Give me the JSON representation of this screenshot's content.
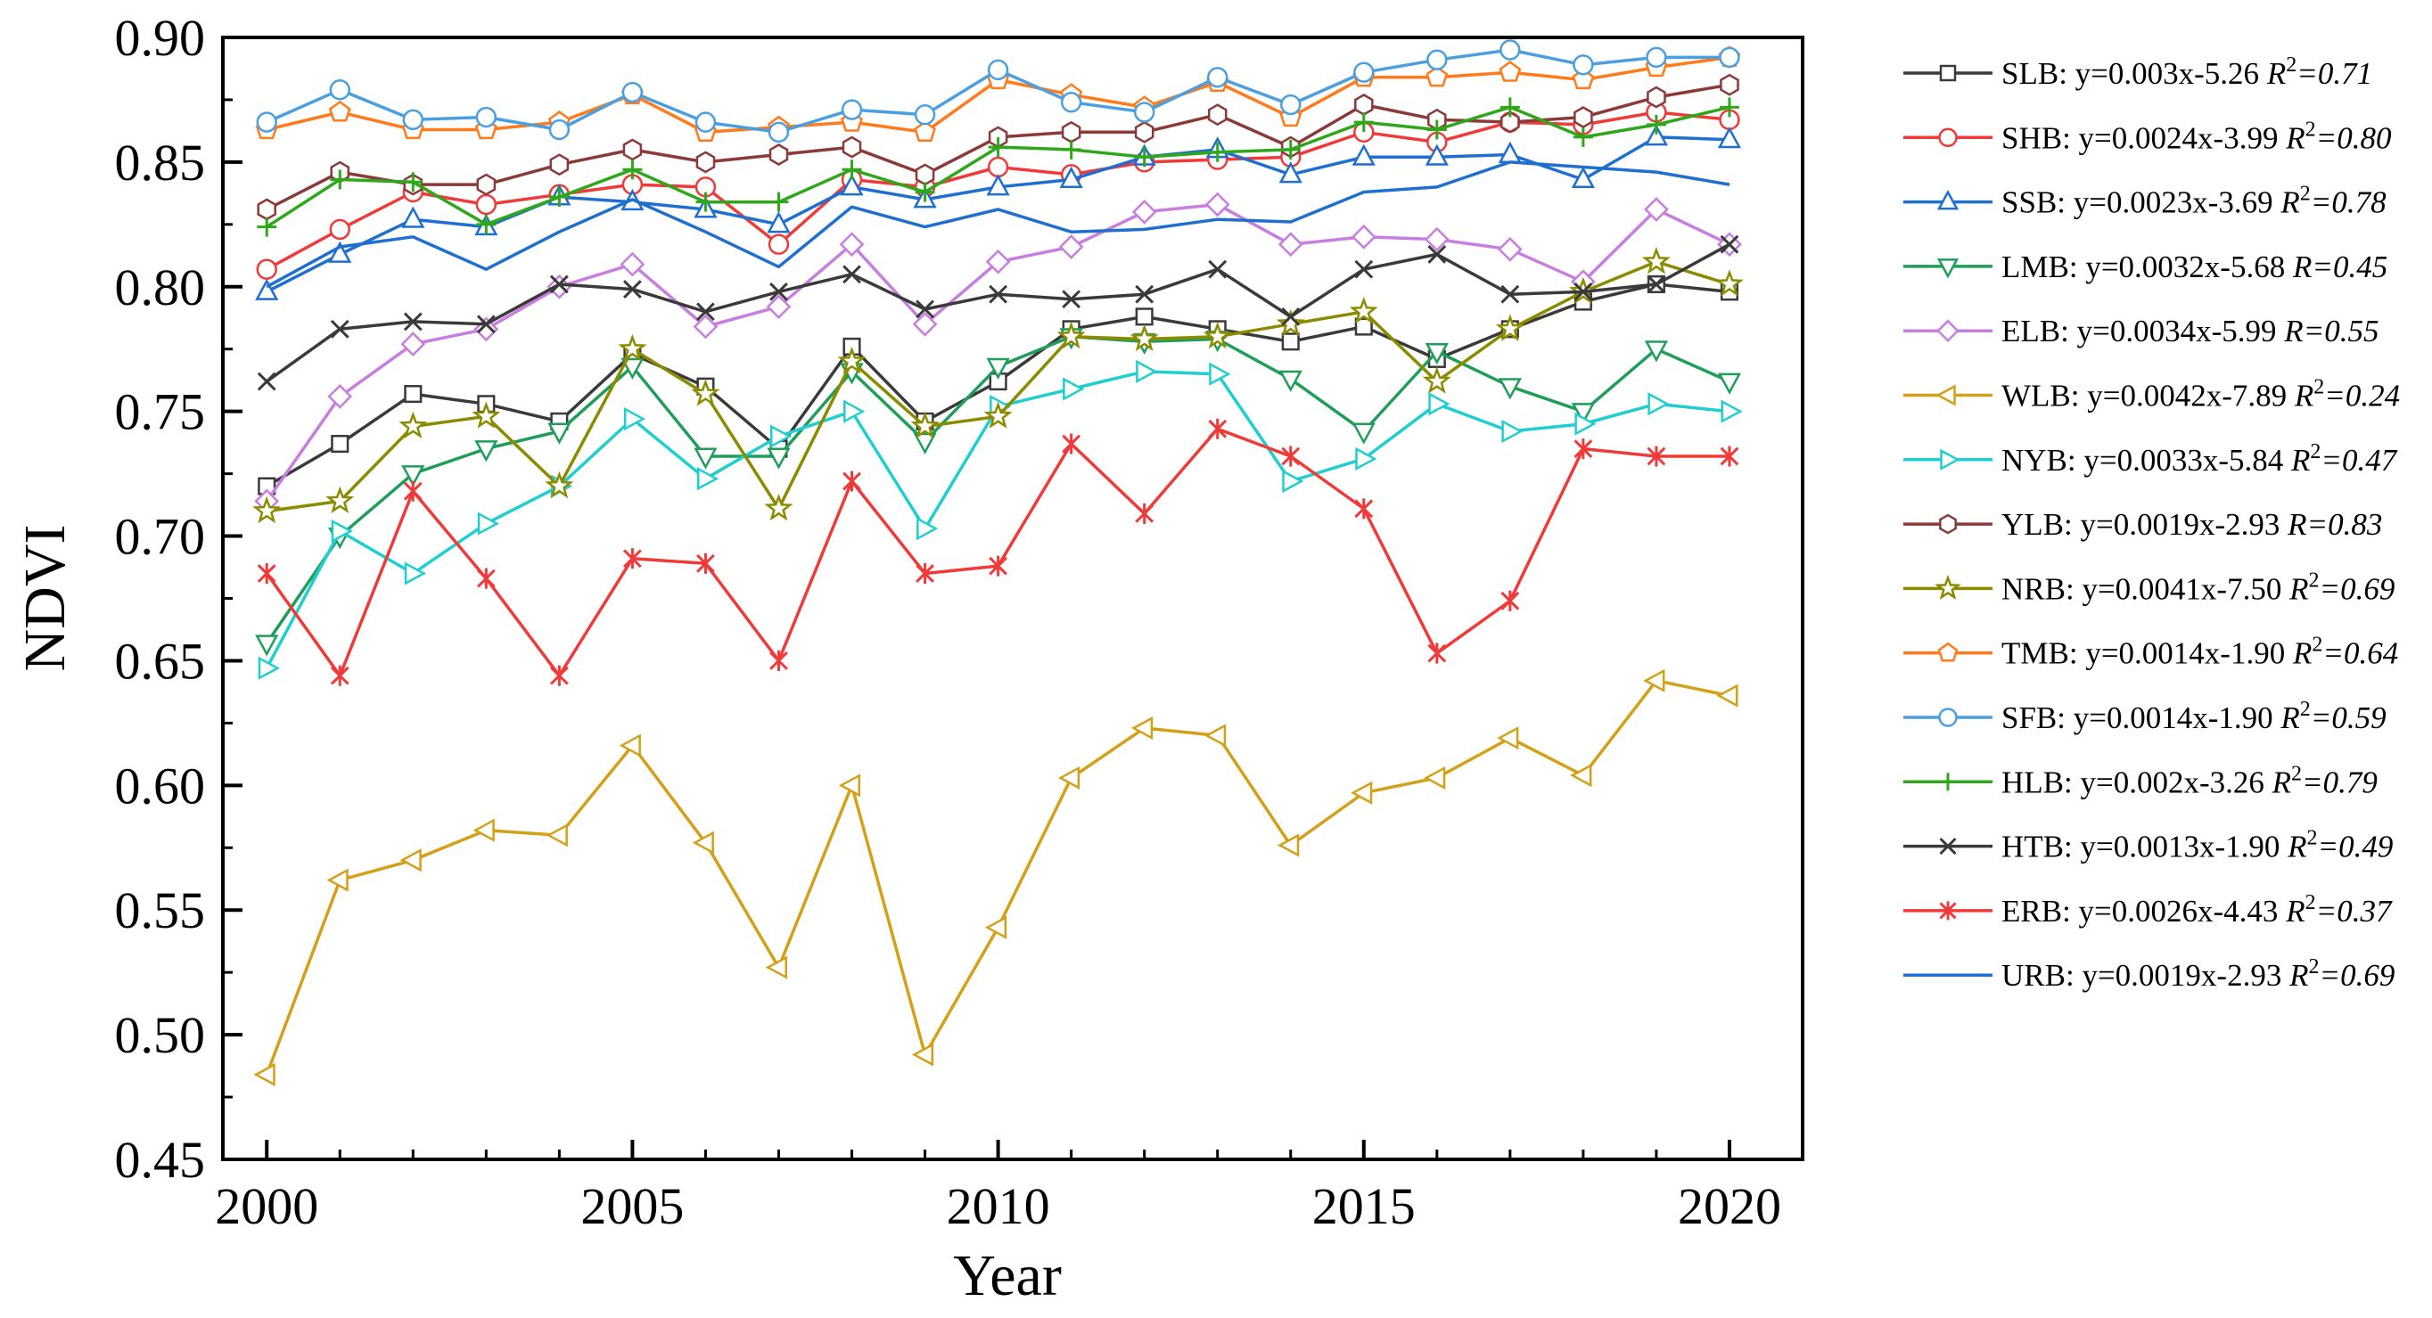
{
  "chart_data": {
    "type": "line",
    "title": "",
    "xlabel": "Year",
    "ylabel": "NDVI",
    "xlim": [
      1999.4,
      2021.0
    ],
    "ylim": [
      0.45,
      0.9
    ],
    "xticks": [
      "2000",
      "2005",
      "2010",
      "2015",
      "2020"
    ],
    "yticks": [
      "0.45",
      "0.50",
      "0.55",
      "0.60",
      "0.65",
      "0.70",
      "0.75",
      "0.80",
      "0.85",
      "0.90"
    ],
    "legend_position": "right",
    "x": [
      2000,
      2001,
      2002,
      2003,
      2004,
      2005,
      2006,
      2007,
      2008,
      2009,
      2010,
      2011,
      2012,
      2013,
      2014,
      2015,
      2016,
      2017,
      2018,
      2019,
      2020
    ],
    "series": [
      {
        "name": "SLB",
        "label": "SLB: y=0.003x-5.26 ",
        "r2_label": "R",
        "r2_sup": "2",
        "r2_value": "=0.71",
        "color": "#3a3a3a",
        "marker": "square",
        "values": [
          0.72,
          0.737,
          0.757,
          0.753,
          0.746,
          0.773,
          0.76,
          0.735,
          0.776,
          0.746,
          0.762,
          0.783,
          0.788,
          0.783,
          0.778,
          0.784,
          0.771,
          0.783,
          0.794,
          0.801,
          0.798
        ]
      },
      {
        "name": "SHB",
        "label": "SHB: y=0.0024x-3.99 ",
        "r2_label": "R",
        "r2_sup": "2",
        "r2_value": "=0.80",
        "color": "#f03a3a",
        "marker": "circle",
        "values": [
          0.807,
          0.823,
          0.838,
          0.833,
          0.837,
          0.841,
          0.84,
          0.817,
          0.843,
          0.84,
          0.848,
          0.845,
          0.85,
          0.851,
          0.852,
          0.862,
          0.858,
          0.866,
          0.865,
          0.87,
          0.867
        ]
      },
      {
        "name": "SSB",
        "label": "SSB: y=0.0023x-3.69 ",
        "r2_label": "R",
        "r2_sup": "2",
        "r2_value": "=0.78",
        "color": "#1f6fd1",
        "marker": "triangle-up",
        "values": [
          0.798,
          0.813,
          0.827,
          0.824,
          0.836,
          0.834,
          0.831,
          0.825,
          0.84,
          0.835,
          0.84,
          0.843,
          0.852,
          0.855,
          0.845,
          0.852,
          0.852,
          0.853,
          0.843,
          0.86,
          0.859
        ]
      },
      {
        "name": "LMB",
        "label": "LMB: y=0.0032x-5.68 ",
        "r2_label": "R",
        "r2_sup": "",
        "r2_value": "=0.45",
        "color": "#1f9e5a",
        "marker": "triangle-down",
        "values": [
          0.657,
          0.7,
          0.725,
          0.735,
          0.742,
          0.768,
          0.732,
          0.732,
          0.766,
          0.738,
          0.768,
          0.78,
          0.778,
          0.779,
          0.763,
          0.742,
          0.774,
          0.76,
          0.75,
          0.775,
          0.762
        ]
      },
      {
        "name": "ELB",
        "label": "ELB: y=0.0034x-5.99 ",
        "r2_label": "R",
        "r2_sup": "",
        "r2_value": "=0.55",
        "color": "#c77ee0",
        "marker": "diamond",
        "values": [
          0.714,
          0.756,
          0.777,
          0.783,
          0.8,
          0.809,
          0.784,
          0.792,
          0.817,
          0.785,
          0.81,
          0.816,
          0.83,
          0.833,
          0.817,
          0.82,
          0.819,
          0.815,
          0.802,
          0.831,
          0.817
        ]
      },
      {
        "name": "WLB",
        "label": "WLB: y=0.0042x-7.89 ",
        "r2_label": "R",
        "r2_sup": "2",
        "r2_value": "=0.24",
        "color": "#d4a017",
        "marker": "triangle-left",
        "values": [
          0.484,
          0.562,
          0.57,
          0.582,
          0.58,
          0.616,
          0.577,
          0.527,
          0.6,
          0.492,
          0.543,
          0.603,
          0.623,
          0.62,
          0.576,
          0.597,
          0.603,
          0.619,
          0.604,
          0.642,
          0.636
        ]
      },
      {
        "name": "NYB",
        "label": "NYB: y=0.0033x-5.84 ",
        "r2_label": "R",
        "r2_sup": "2",
        "r2_value": "=0.47",
        "color": "#1fcfcf",
        "marker": "triangle-right",
        "values": [
          0.647,
          0.702,
          0.685,
          0.705,
          0.72,
          0.747,
          0.723,
          0.74,
          0.75,
          0.703,
          0.752,
          0.759,
          0.766,
          0.765,
          0.722,
          0.731,
          0.753,
          0.742,
          0.745,
          0.753,
          0.75
        ]
      },
      {
        "name": "YLB",
        "label": "YLB: y=0.0019x-2.93 ",
        "r2_label": "R",
        "r2_sup": "",
        "r2_value": "=0.83",
        "color": "#8b3a3a",
        "marker": "hexagon",
        "values": [
          0.831,
          0.846,
          0.841,
          0.841,
          0.849,
          0.855,
          0.85,
          0.853,
          0.856,
          0.845,
          0.86,
          0.862,
          0.862,
          0.869,
          0.856,
          0.873,
          0.867,
          0.866,
          0.868,
          0.876,
          0.881
        ]
      },
      {
        "name": "NRB",
        "label": "NRB: y=0.0041x-7.50 ",
        "r2_label": "R",
        "r2_sup": "2",
        "r2_value": "=0.69",
        "color": "#8b8b00",
        "marker": "star",
        "values": [
          0.71,
          0.714,
          0.744,
          0.748,
          0.72,
          0.775,
          0.757,
          0.711,
          0.77,
          0.744,
          0.748,
          0.78,
          0.779,
          0.78,
          0.785,
          0.79,
          0.762,
          0.783,
          0.798,
          0.81,
          0.801
        ]
      },
      {
        "name": "TMB",
        "label": "TMB: y=0.0014x-1.90 ",
        "r2_label": "R",
        "r2_sup": "2",
        "r2_value": "=0.64",
        "color": "#ff7a1a",
        "marker": "pentagon",
        "values": [
          0.863,
          0.87,
          0.863,
          0.863,
          0.866,
          0.877,
          0.862,
          0.864,
          0.866,
          0.862,
          0.883,
          0.877,
          0.872,
          0.882,
          0.868,
          0.884,
          0.884,
          0.886,
          0.883,
          0.888,
          0.892
        ]
      },
      {
        "name": "SFB",
        "label": "SFB: y=0.0014x-1.90 ",
        "r2_label": "R",
        "r2_sup": "2",
        "r2_value": "=0.59",
        "color": "#4a9fe0",
        "marker": "circle",
        "values": [
          0.866,
          0.879,
          0.867,
          0.868,
          0.863,
          0.878,
          0.866,
          0.862,
          0.871,
          0.869,
          0.887,
          0.874,
          0.87,
          0.884,
          0.873,
          0.886,
          0.891,
          0.895,
          0.889,
          0.892,
          0.892
        ]
      },
      {
        "name": "HLB",
        "label": "HLB: y=0.002x-3.26 ",
        "r2_label": "R",
        "r2_sup": "2",
        "r2_value": "=0.79",
        "color": "#2ea81a",
        "marker": "plus",
        "values": [
          0.824,
          0.843,
          0.842,
          0.825,
          0.836,
          0.847,
          0.834,
          0.834,
          0.847,
          0.838,
          0.856,
          0.855,
          0.852,
          0.854,
          0.855,
          0.866,
          0.863,
          0.872,
          0.86,
          0.865,
          0.872
        ]
      },
      {
        "name": "HTB",
        "label": "HTB: y=0.0013x-1.90 ",
        "r2_label": "R",
        "r2_sup": "2",
        "r2_value": "=0.49",
        "color": "#3a3a3a",
        "marker": "x",
        "values": [
          0.762,
          0.783,
          0.786,
          0.785,
          0.801,
          0.799,
          0.79,
          0.798,
          0.805,
          0.791,
          0.797,
          0.795,
          0.797,
          0.807,
          0.788,
          0.807,
          0.813,
          0.797,
          0.798,
          0.801,
          0.817
        ]
      },
      {
        "name": "ERB",
        "label": "ERB: y=0.0026x-4.43 ",
        "r2_label": "R",
        "r2_sup": "2",
        "r2_value": "=0.37",
        "color": "#f03a3a",
        "marker": "asterisk",
        "values": [
          0.685,
          0.644,
          0.718,
          0.683,
          0.644,
          0.691,
          0.689,
          0.65,
          0.722,
          0.685,
          0.688,
          0.737,
          0.709,
          0.743,
          0.732,
          0.711,
          0.653,
          0.674,
          0.735,
          0.732,
          0.732
        ]
      },
      {
        "name": "URB",
        "label": "URB: y=0.0019x-2.93 ",
        "r2_label": "R",
        "r2_sup": "2",
        "r2_value": "=0.69",
        "color": "#1f6fd1",
        "marker": "none",
        "values": [
          0.8,
          0.816,
          0.82,
          0.807,
          0.822,
          0.835,
          0.822,
          0.808,
          0.832,
          0.824,
          0.831,
          0.822,
          0.823,
          0.827,
          0.826,
          0.838,
          0.84,
          0.85,
          0.848,
          0.846,
          0.841
        ]
      }
    ]
  }
}
